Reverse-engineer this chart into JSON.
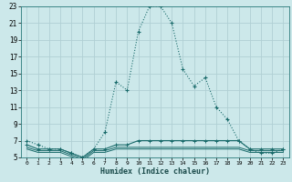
{
  "xlabel": "Humidex (Indice chaleur)",
  "background_color": "#cce8ea",
  "grid_color": "#b0d0d4",
  "line_color": "#1a6b6b",
  "x_values": [
    0,
    1,
    2,
    3,
    4,
    5,
    6,
    7,
    8,
    9,
    10,
    11,
    12,
    13,
    14,
    15,
    16,
    17,
    18,
    19,
    20,
    21,
    22,
    23
  ],
  "series1": [
    7,
    6.5,
    6,
    6,
    5.5,
    5,
    6,
    8,
    14,
    13,
    20,
    23,
    23,
    21,
    15.5,
    13.5,
    14.5,
    11,
    9.5,
    7,
    6,
    5.5,
    5.5,
    6
  ],
  "series2": [
    6.5,
    6,
    6,
    6,
    5.5,
    5,
    6,
    6,
    6.5,
    6.5,
    7,
    7,
    7,
    7,
    7,
    7,
    7,
    7,
    7,
    7,
    6,
    6,
    6,
    6
  ],
  "series3": [
    6.2,
    5.8,
    5.8,
    5.8,
    5.3,
    4.8,
    5.8,
    5.8,
    6.2,
    6.2,
    6.2,
    6.2,
    6.2,
    6.2,
    6.2,
    6.2,
    6.2,
    6.2,
    6.2,
    6.2,
    5.8,
    5.8,
    5.8,
    5.8
  ],
  "series4": [
    6.0,
    5.6,
    5.6,
    5.6,
    5.1,
    4.6,
    5.6,
    5.6,
    6.0,
    6.0,
    6.0,
    6.0,
    6.0,
    6.0,
    6.0,
    6.0,
    6.0,
    6.0,
    6.0,
    6.0,
    5.6,
    5.6,
    5.6,
    5.6
  ],
  "ylim": [
    5,
    23
  ],
  "xlim": [
    -0.5,
    23.5
  ],
  "yticks": [
    5,
    7,
    9,
    11,
    13,
    15,
    17,
    19,
    21,
    23
  ],
  "xtick_labels": [
    "0",
    "1",
    "2",
    "3",
    "4",
    "5",
    "6",
    "7",
    "8",
    "9",
    "10",
    "11",
    "12",
    "13",
    "14",
    "15",
    "16",
    "17",
    "18",
    "19",
    "20",
    "21",
    "22",
    "23"
  ]
}
